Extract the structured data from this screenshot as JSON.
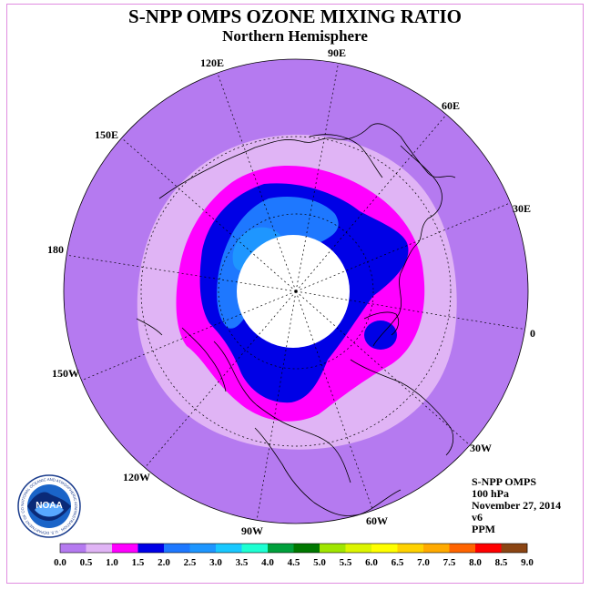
{
  "title": "S-NPP OMPS OZONE MIXING RATIO",
  "subtitle": "Northern Hemisphere",
  "longitude_labels": [
    "90E",
    "60E",
    "30E",
    "0",
    "30W",
    "60W",
    "90W",
    "120W",
    "150W",
    "180",
    "150E",
    "120E"
  ],
  "info": {
    "instrument": "S-NPP OMPS",
    "level": "100 hPa",
    "date": "November 27, 2014",
    "version": "v6",
    "units": "PPM"
  },
  "logo": {
    "text": "NOAA",
    "ring_text": "NATIONAL OCEANIC AND ATMOSPHERIC ADMINISTRATION · U.S. DEPARTMENT OF COMMERCE"
  },
  "colorbar": {
    "ticks": [
      "0.0",
      "0.5",
      "1.0",
      "1.5",
      "2.0",
      "2.5",
      "3.0",
      "3.5",
      "4.0",
      "4.5",
      "5.0",
      "5.5",
      "6.0",
      "6.5",
      "7.0",
      "7.5",
      "8.0",
      "8.5",
      "9.0"
    ],
    "colors": [
      "#b57af0",
      "#e0b4f5",
      "#ff00ff",
      "#0000e6",
      "#1e78ff",
      "#1e96ff",
      "#19c8ff",
      "#1effd2",
      "#00a03c",
      "#007800",
      "#a0e600",
      "#dcf500",
      "#ffff00",
      "#ffd200",
      "#ffaa00",
      "#ff6400",
      "#ff0000",
      "#8b4513"
    ]
  },
  "map_fill_colors": {
    "outer": "#b57af0",
    "band_0_5": "#e0b4f5",
    "band_1_0": "#ff00ff",
    "band_1_5": "#0000e6",
    "band_2_0": "#1e78ff",
    "band_2_5": "#1e96ff",
    "missing": "#ffffff"
  }
}
